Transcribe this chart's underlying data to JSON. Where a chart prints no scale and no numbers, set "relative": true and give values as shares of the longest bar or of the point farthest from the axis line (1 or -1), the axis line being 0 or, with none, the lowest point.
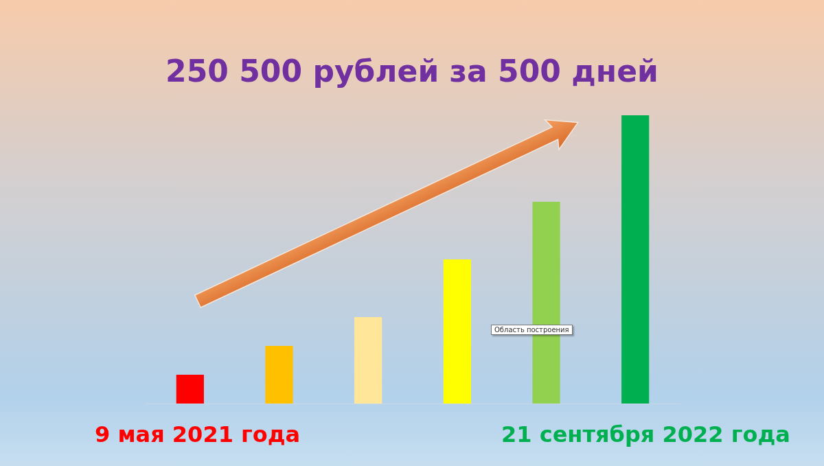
{
  "chart_data": {
    "type": "bar",
    "title": "250 500 рублей за 500 дней",
    "categories": [
      null,
      null,
      null,
      null,
      null,
      null
    ],
    "values": [
      0.1,
      0.2,
      0.3,
      0.5,
      0.7,
      1
    ],
    "colors": [
      "#ff0000",
      "#ffc000",
      "#ffe699",
      "#ffff00",
      "#92d050",
      "#00b050"
    ],
    "relative": true,
    "grid": false,
    "legend": false,
    "annotations": [
      "9 мая 2021 года",
      "21 сентября 2022 года",
      "Область построения"
    ]
  }
}
